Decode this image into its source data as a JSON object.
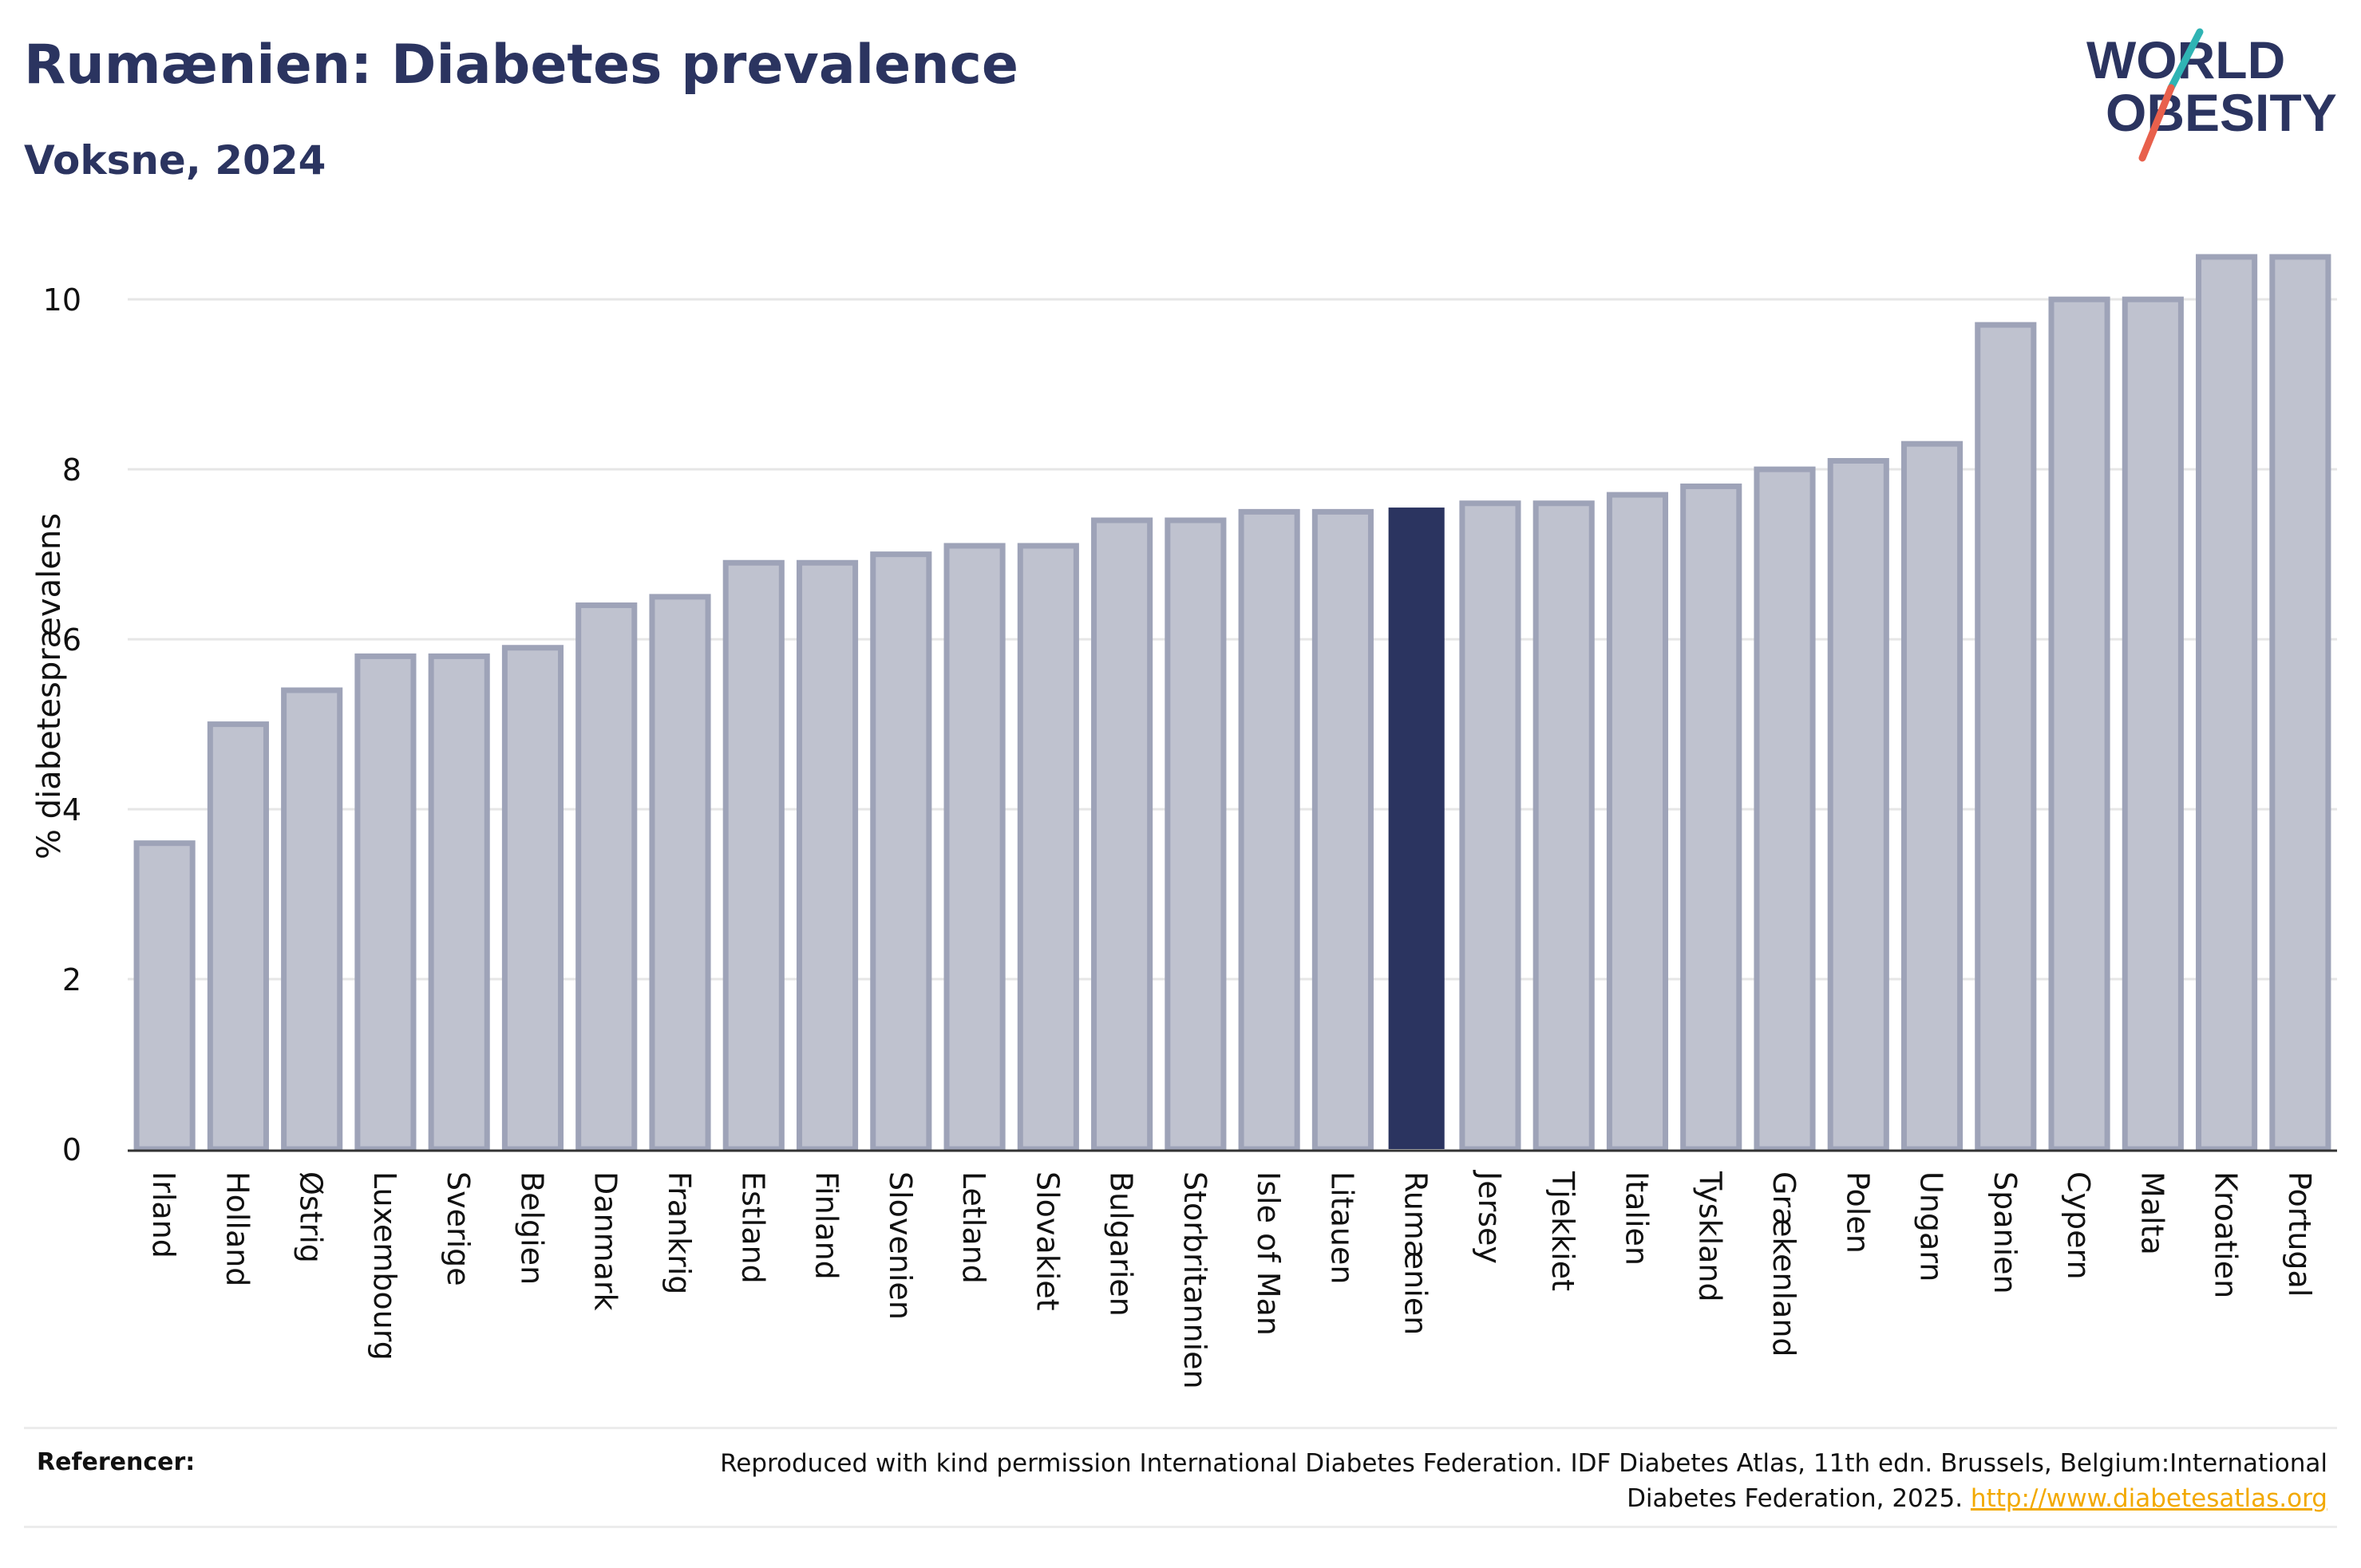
{
  "header": {
    "title": "Rumænien: Diabetes prevalence",
    "subtitle": "Voksne, 2024"
  },
  "logo": {
    "line1": "WORLD",
    "line2": "OBESITY",
    "colors": {
      "text": "#2b3460",
      "slash_teal": "#2fb4b4",
      "slash_red": "#e8604c"
    }
  },
  "chart_data": {
    "type": "bar",
    "ylabel": "% diabetesprævalens",
    "xlabel": "",
    "ylim": [
      0,
      10.8
    ],
    "yticks": [
      0,
      2,
      4,
      6,
      8,
      10
    ],
    "grid": true,
    "highlight": "Rumænien",
    "colors": {
      "bar": "#bfc2cf",
      "bar_border": "#9ea3b8",
      "highlight": "#2b3460",
      "grid": "#e6e6e6",
      "axis": "#333333"
    },
    "categories": [
      "Irland",
      "Holland",
      "Østrig",
      "Luxembourg",
      "Sverige",
      "Belgien",
      "Danmark",
      "Frankrig",
      "Estland",
      "Finland",
      "Slovenien",
      "Letland",
      "Slovakiet",
      "Bulgarien",
      "Storbritannien",
      "Isle of Man",
      "Litauen",
      "Rumænien",
      "Jersey",
      "Tjekkiet",
      "Italien",
      "Tyskland",
      "Grækenland",
      "Polen",
      "Ungarn",
      "Spanien",
      "Cypern",
      "Malta",
      "Kroatien",
      "Portugal"
    ],
    "values": [
      3.6,
      5.0,
      5.4,
      5.8,
      5.8,
      5.9,
      6.4,
      6.5,
      6.9,
      6.9,
      7.0,
      7.1,
      7.1,
      7.4,
      7.4,
      7.5,
      7.5,
      7.55,
      7.6,
      7.6,
      7.7,
      7.8,
      8.0,
      8.1,
      8.3,
      9.7,
      10.0,
      10.0,
      10.5,
      10.5
    ]
  },
  "references": {
    "label": "Referencer:",
    "text": "Reproduced with kind permission International Diabetes Federation. IDF Diabetes Atlas, 11th edn. Brussels, Belgium:International Diabetes Federation, 2025.",
    "link": "http://www.diabetesatlas.org"
  }
}
